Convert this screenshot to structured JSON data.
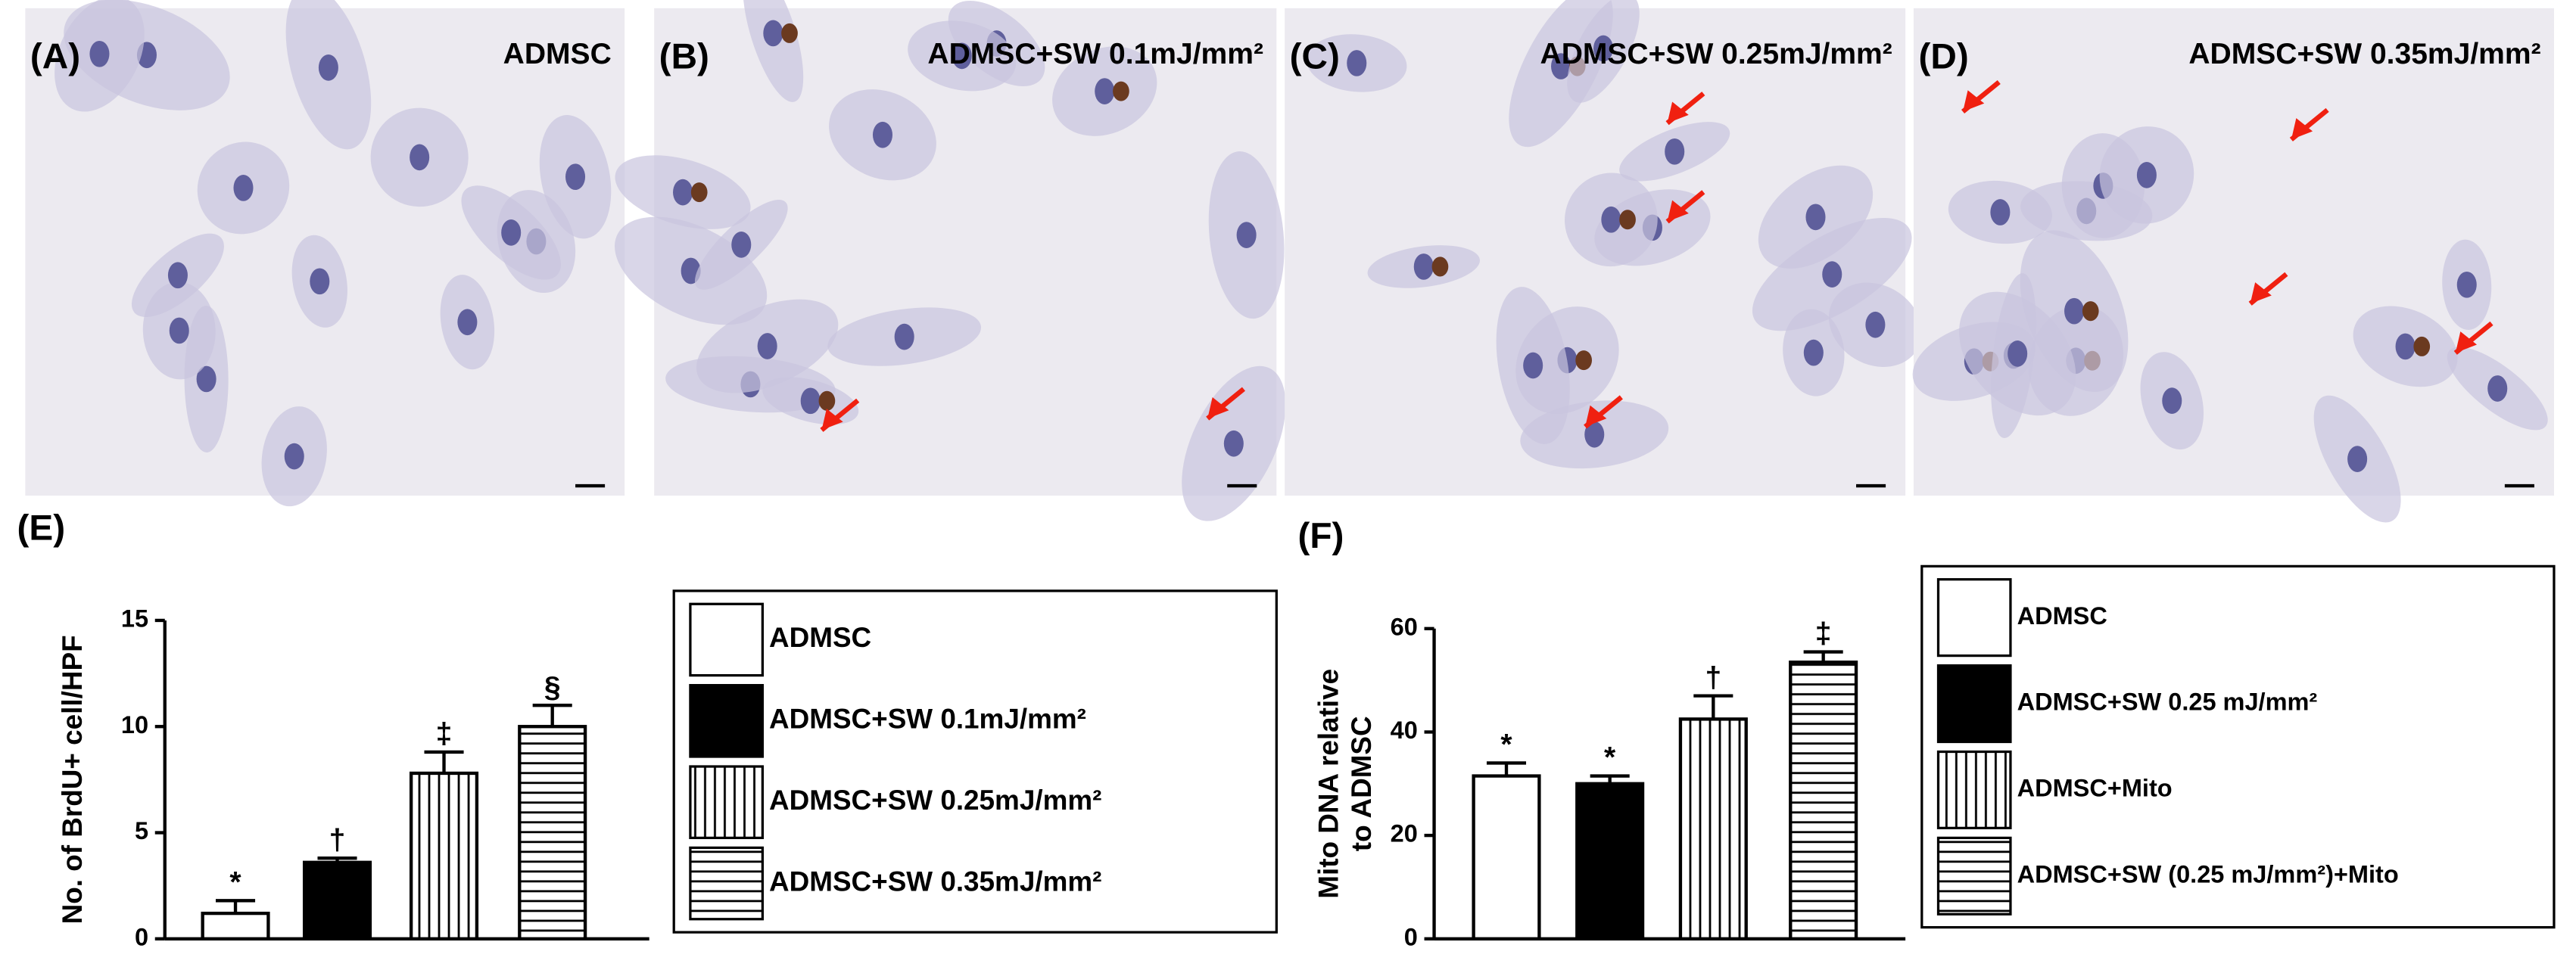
{
  "panels": [
    {
      "label": "(A)",
      "title": "ADMSC"
    },
    {
      "label": "(B)",
      "title": "ADMSC+SW 0.1mJ/mm²"
    },
    {
      "label": "(C)",
      "title": "ADMSC+SW 0.25mJ/mm²"
    },
    {
      "label": "(D)",
      "title": "ADMSC+SW 0.35mJ/mm²"
    }
  ],
  "chart_data": [
    {
      "type": "bar",
      "panel_label": "(E)",
      "y_label": [
        "No. of BrdU+ cell/HPF"
      ],
      "categories": [
        "ADMSC",
        "ADMSC+SW 0.1mJ/mm²",
        "ADMSC+SW 0.25mJ/mm²",
        "ADMSC+SW 0.35mJ/mm²"
      ],
      "values": [
        1.2,
        3.6,
        7.8,
        10.0
      ],
      "errors": [
        0.6,
        0.2,
        1.0,
        1.0
      ],
      "annotations": [
        "*",
        "†",
        "‡",
        "§"
      ],
      "patterns": [
        "white",
        "black",
        "vertical",
        "horizontal"
      ],
      "ylim": [
        0,
        15
      ],
      "yticks": [
        0,
        5,
        10,
        15
      ]
    },
    {
      "type": "bar",
      "panel_label": "(F)",
      "y_label": [
        "Mito DNA relative",
        "to ADMSC"
      ],
      "categories": [
        "ADMSC",
        "ADMSC+SW 0.25 mJ/mm²",
        "ADMSC+Mito",
        "ADMSC+SW (0.25 mJ/mm²)+Mito"
      ],
      "values": [
        31.5,
        30.0,
        42.5,
        53.5
      ],
      "errors": [
        2.5,
        1.5,
        4.5,
        2.0
      ],
      "annotations": [
        "*",
        "*",
        "†",
        "‡"
      ],
      "patterns": [
        "white",
        "black",
        "vertical",
        "horizontal"
      ],
      "ylim": [
        0,
        60
      ],
      "yticks": [
        0,
        20,
        40,
        60
      ]
    }
  ]
}
